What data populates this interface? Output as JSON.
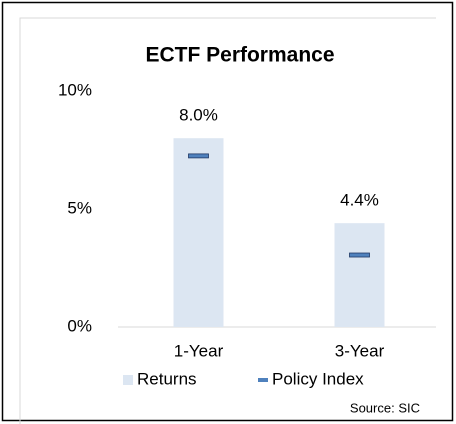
{
  "chart_data": {
    "type": "bar",
    "title": "ECTF Performance",
    "categories": [
      "1-Year",
      "3-Year"
    ],
    "series": [
      {
        "name": "Returns",
        "type": "bar",
        "color": "#dce6f2",
        "values": [
          8.0,
          4.4
        ],
        "value_labels": [
          "8.0%",
          "4.4%"
        ]
      },
      {
        "name": "Policy Index",
        "type": "marker",
        "color": "#4f81bd",
        "values": [
          7.25,
          3.05
        ]
      }
    ],
    "ylim": [
      0,
      10
    ],
    "yticks": [
      {
        "value": 0,
        "label": "0%"
      },
      {
        "value": 5,
        "label": "5%"
      },
      {
        "value": 10,
        "label": "10%"
      }
    ],
    "grid": false,
    "legend": "bottom",
    "source": "Source: SIC"
  }
}
